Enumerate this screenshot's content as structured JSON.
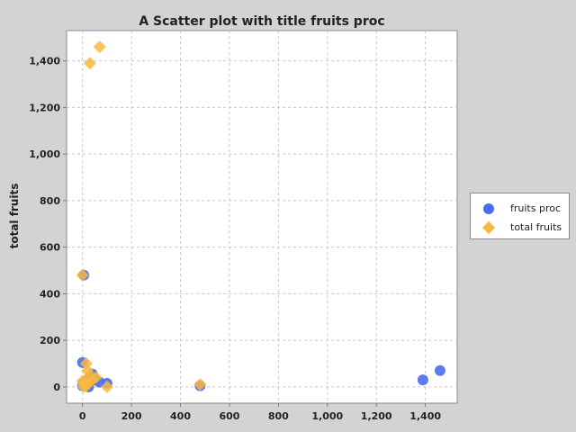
{
  "chart_data": {
    "type": "scatter",
    "title": "A Scatter plot with title fruits proc",
    "xlabel": "",
    "ylabel": "total fruits",
    "xlim": [
      -65,
      1530
    ],
    "ylim": [
      -70,
      1530
    ],
    "xticks": [
      0,
      200,
      400,
      600,
      800,
      1000,
      1200,
      1400
    ],
    "yticks": [
      0,
      200,
      400,
      600,
      800,
      1000,
      1200,
      1400
    ],
    "xtick_labels": [
      "0",
      "200",
      "400",
      "600",
      "800",
      "1,000",
      "1,200",
      "1,400"
    ],
    "ytick_labels": [
      "0",
      "200",
      "400",
      "600",
      "800",
      "1,000",
      "1,200",
      "1,400"
    ],
    "grid": true,
    "legend_position": "right",
    "series": [
      {
        "name": "fruits proc",
        "marker": "circle",
        "color": "#4a6cf0",
        "points": [
          [
            1390,
            30
          ],
          [
            1460,
            70
          ],
          [
            480,
            5
          ],
          [
            5,
            480
          ],
          [
            0,
            105
          ],
          [
            100,
            15
          ],
          [
            70,
            20
          ],
          [
            40,
            55
          ],
          [
            30,
            40
          ],
          [
            20,
            10
          ],
          [
            15,
            25
          ],
          [
            10,
            5
          ],
          [
            5,
            15
          ],
          [
            0,
            5
          ],
          [
            50,
            30
          ],
          [
            25,
            0
          ]
        ]
      },
      {
        "name": "total fruits",
        "marker": "diamond",
        "color": "#f8b840",
        "points": [
          [
            70,
            1460
          ],
          [
            30,
            1390
          ],
          [
            0,
            480
          ],
          [
            480,
            10
          ],
          [
            100,
            0
          ],
          [
            15,
            100
          ],
          [
            20,
            70
          ],
          [
            55,
            40
          ],
          [
            40,
            30
          ],
          [
            10,
            20
          ],
          [
            25,
            15
          ],
          [
            5,
            10
          ],
          [
            15,
            5
          ],
          [
            5,
            0
          ],
          [
            30,
            50
          ],
          [
            0,
            25
          ]
        ]
      }
    ]
  }
}
